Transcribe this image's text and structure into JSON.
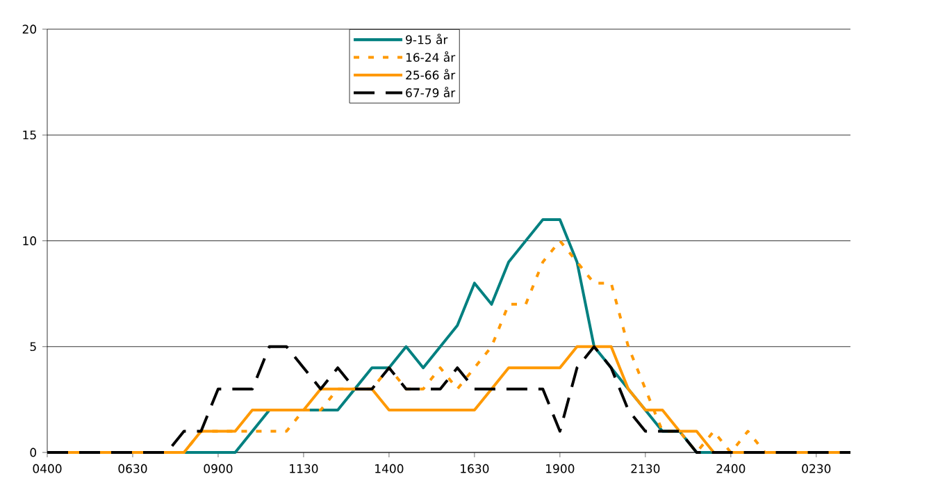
{
  "chart_data": {
    "type": "line",
    "categories": [
      "0400",
      null,
      null,
      null,
      null,
      "0630",
      null,
      null,
      null,
      null,
      "0900",
      null,
      null,
      null,
      null,
      "1130",
      null,
      null,
      null,
      null,
      "1400",
      null,
      null,
      null,
      null,
      "1630",
      null,
      null,
      null,
      null,
      "1900",
      null,
      null,
      null,
      null,
      "2130",
      null,
      null,
      null,
      null,
      "2400",
      null,
      null,
      null,
      null,
      "0230",
      null,
      null
    ],
    "series": [
      {
        "name": "9-15 år",
        "color": "#008080",
        "line_style": "solid",
        "values": [
          null,
          null,
          null,
          null,
          null,
          null,
          null,
          0,
          0,
          0,
          0,
          0,
          1,
          2,
          null,
          null,
          2,
          2,
          3,
          4,
          4,
          5,
          4,
          5,
          6,
          8,
          7,
          9,
          10,
          11,
          11,
          9,
          5,
          4,
          3,
          2,
          1,
          1,
          0,
          0,
          0,
          null,
          null,
          null,
          null,
          null,
          null,
          null
        ]
      },
      {
        "name": "16-24 år",
        "color": "#ff9900",
        "line_style": "dotted",
        "values": [
          0,
          0,
          0,
          0,
          0,
          0,
          0,
          0,
          0,
          1,
          1,
          1,
          1,
          1,
          1,
          2,
          2,
          3,
          3,
          3,
          4,
          3,
          3,
          4,
          3,
          4,
          5,
          7,
          7,
          9,
          10,
          9,
          8,
          8,
          5,
          3,
          1,
          1,
          0,
          1,
          0,
          1,
          0,
          0,
          0,
          0,
          0,
          0
        ]
      },
      {
        "name": "25-66 år",
        "color": "#ff9900",
        "line_style": "solid",
        "values": [
          0,
          0,
          0,
          0,
          0,
          0,
          0,
          0,
          0,
          1,
          1,
          1,
          2,
          2,
          2,
          2,
          3,
          3,
          3,
          3,
          2,
          2,
          2,
          2,
          2,
          2,
          3,
          4,
          4,
          4,
          4,
          5,
          5,
          5,
          3,
          2,
          2,
          1,
          1,
          0,
          0,
          0,
          0,
          0,
          0,
          0,
          0,
          0
        ]
      },
      {
        "name": "67-79 år",
        "color": "#000000",
        "line_style": "dashed",
        "values": [
          0,
          0,
          0,
          0,
          0,
          0,
          0,
          0,
          1,
          1,
          3,
          3,
          3,
          5,
          5,
          4,
          3,
          4,
          3,
          3,
          4,
          3,
          3,
          3,
          4,
          3,
          3,
          3,
          3,
          3,
          1,
          4,
          5,
          4,
          2,
          1,
          1,
          1,
          0,
          0,
          0,
          0,
          0,
          0,
          0,
          0,
          0,
          0
        ]
      }
    ],
    "ylim": [
      0,
      20
    ],
    "yticks": [
      0,
      5,
      10,
      15,
      20
    ],
    "grid": "y",
    "legend": "top",
    "marker": "none"
  }
}
